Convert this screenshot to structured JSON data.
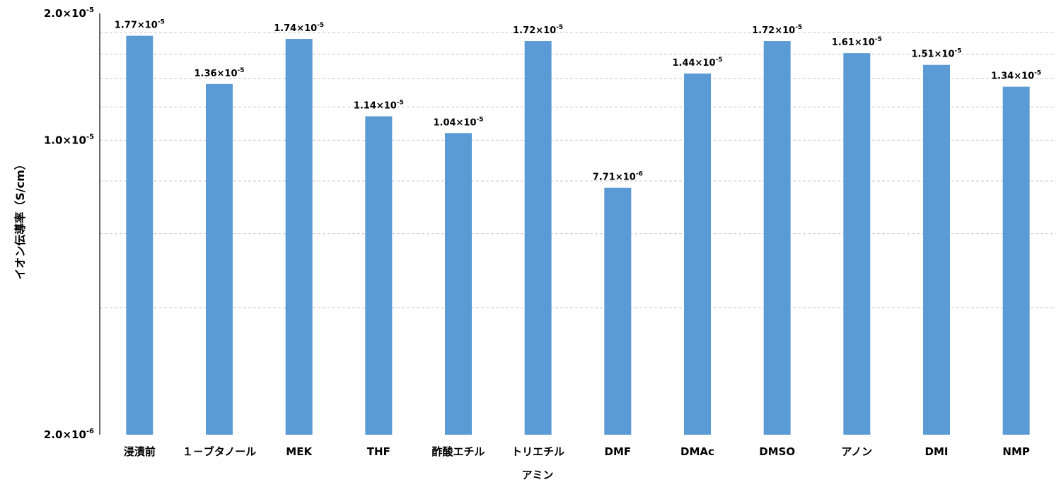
{
  "chart_data": {
    "type": "bar",
    "ylabel": "イオン伝導率（S/cm）",
    "xlabel": "アミン",
    "scale": "log",
    "ylim": [
      2e-06,
      2e-05
    ],
    "y_ticks": [
      {
        "value": 2e-05,
        "base": "2.0×10",
        "exp": "-5"
      },
      {
        "value": 1e-05,
        "base": "1.0×10",
        "exp": "-5"
      },
      {
        "value": 2e-06,
        "base": "2.0×10",
        "exp": "-6"
      }
    ],
    "minor_gridlines": [
      1.8e-05,
      1.6e-05,
      1.4e-05,
      1.2e-05,
      8e-06,
      6e-06,
      4e-06
    ],
    "bar_color": "#5b9bd5",
    "categories": [
      "浸漬前",
      "１－ブタノール",
      "MEK",
      "THF",
      "酢酸エチル",
      "トリエチル",
      "DMF",
      "DMAc",
      "DMSO",
      "アノン",
      "DMI",
      "NMP"
    ],
    "values": [
      1.77e-05,
      1.36e-05,
      1.74e-05,
      1.14e-05,
      1.04e-05,
      1.72e-05,
      7.71e-06,
      1.44e-05,
      1.72e-05,
      1.61e-05,
      1.51e-05,
      1.34e-05
    ],
    "data_labels": [
      {
        "base": "1.77×10",
        "exp": "-5"
      },
      {
        "base": "1.36×10",
        "exp": "-5"
      },
      {
        "base": "1.74×10",
        "exp": "-5"
      },
      {
        "base": "1.14×10",
        "exp": "-5"
      },
      {
        "base": "1.04×10",
        "exp": "-5"
      },
      {
        "base": "1.72×10",
        "exp": "-5"
      },
      {
        "base": "7.71×10",
        "exp": "-6"
      },
      {
        "base": "1.44×10",
        "exp": "-5"
      },
      {
        "base": "1.72×10",
        "exp": "-5"
      },
      {
        "base": "1.61×10",
        "exp": "-5"
      },
      {
        "base": "1.51×10",
        "exp": "-5"
      },
      {
        "base": "1.34×10",
        "exp": "-5"
      }
    ]
  }
}
